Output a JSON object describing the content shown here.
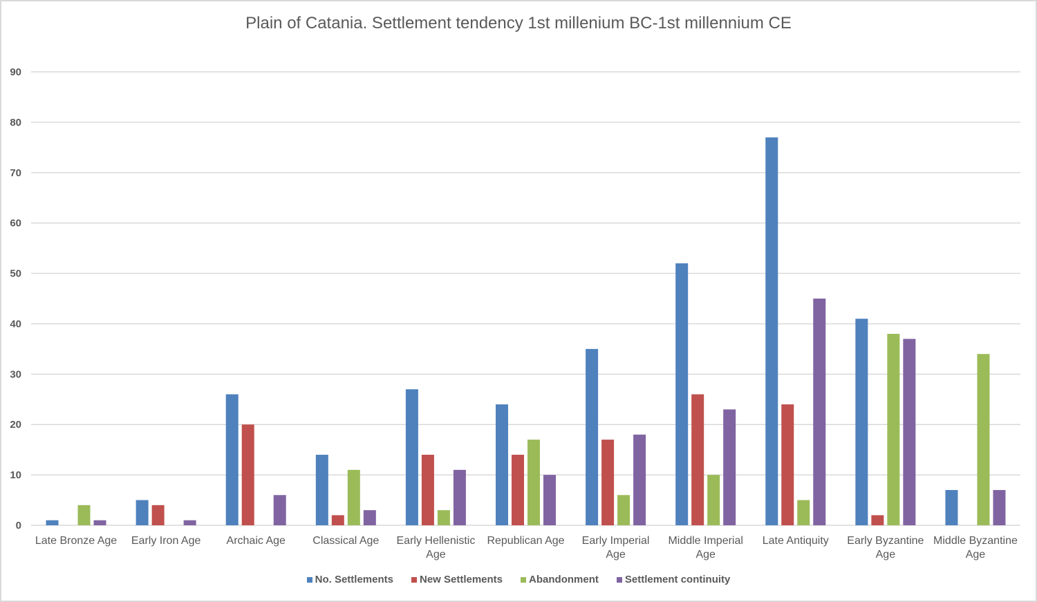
{
  "chart_data": {
    "type": "bar",
    "title": "Plain of Catania. Settlement tendency 1st millenium BC-1st millennium CE",
    "xlabel": "",
    "ylabel": "",
    "ylim": [
      0,
      90
    ],
    "yticks": [
      0,
      10,
      20,
      30,
      40,
      50,
      60,
      70,
      80,
      90
    ],
    "grid": true,
    "legend_position": "bottom",
    "categories": [
      [
        "Late Bronze Age"
      ],
      [
        "Early Iron Age"
      ],
      [
        "Archaic Age"
      ],
      [
        "Classical Age"
      ],
      [
        "Early Hellenistic",
        "Age"
      ],
      [
        "Republican Age"
      ],
      [
        "Early Imperial",
        "Age"
      ],
      [
        "Middle Imperial",
        "Age"
      ],
      [
        "Late Antiquity"
      ],
      [
        "Early Byzantine",
        "Age"
      ],
      [
        "Middle Byzantine",
        "Age"
      ]
    ],
    "series": [
      {
        "name": "No. Settlements",
        "color": "#4f81bd",
        "values": [
          1,
          5,
          26,
          14,
          27,
          24,
          35,
          52,
          77,
          41,
          7
        ]
      },
      {
        "name": "New Settlements",
        "color": "#c0504d",
        "values": [
          0,
          4,
          20,
          2,
          14,
          14,
          17,
          26,
          24,
          2,
          0
        ]
      },
      {
        "name": "Abandonment",
        "color": "#9bbb59",
        "values": [
          4,
          0,
          0,
          11,
          3,
          17,
          6,
          10,
          5,
          38,
          34
        ]
      },
      {
        "name": "Settlement continuity",
        "color": "#8064a2",
        "values": [
          1,
          1,
          6,
          3,
          11,
          10,
          18,
          23,
          45,
          37,
          7
        ]
      }
    ]
  }
}
